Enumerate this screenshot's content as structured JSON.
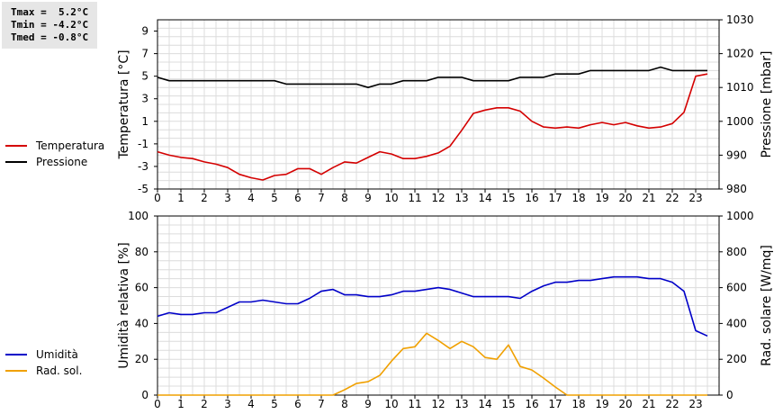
{
  "stats": {
    "tmax": "Tmax =  5.2°C",
    "tmin": "Tmin = -4.2°C",
    "tmed": "Tmed = -0.8°C"
  },
  "legend_top": [
    {
      "label": "Temperatura",
      "color": "#d40000"
    },
    {
      "label": "Pressione",
      "color": "#000000"
    }
  ],
  "legend_bottom": [
    {
      "label": "Umidità",
      "color": "#0000c8"
    },
    {
      "label": "Rad. sol.",
      "color": "#f0a000"
    }
  ],
  "chart_data": [
    {
      "type": "line",
      "ylabel": "Temperatura [°C]",
      "y2label": "Pressione [mbar]",
      "xlim": [
        0,
        24
      ],
      "ylim": [
        -5,
        10
      ],
      "y2lim": [
        980,
        1030
      ],
      "xticks": [
        "0",
        "1",
        "2",
        "3",
        "4",
        "5",
        "6",
        "7",
        "8",
        "9",
        "10",
        "11",
        "12",
        "13",
        "14",
        "15",
        "16",
        "17",
        "18",
        "19",
        "20",
        "21",
        "22",
        "23"
      ],
      "yticks": [
        "-5",
        "-3",
        "-1",
        "1",
        "3",
        "5",
        "7",
        "9"
      ],
      "y2ticks": [
        "980",
        "990",
        "1000",
        "1010",
        "1020",
        "1030"
      ],
      "grid": true,
      "series": [
        {
          "name": "Temperatura",
          "axis": "left",
          "color": "#d40000",
          "x": [
            0,
            0.5,
            1,
            1.5,
            2,
            2.5,
            3,
            3.5,
            4,
            4.5,
            5,
            5.5,
            6,
            6.5,
            7,
            7.5,
            8,
            8.5,
            9,
            9.5,
            10,
            10.5,
            11,
            11.5,
            12,
            12.5,
            13,
            13.5,
            14,
            14.5,
            15,
            15.5,
            16,
            16.5,
            17,
            17.5,
            18,
            18.5,
            19,
            19.5,
            20,
            20.5,
            21,
            21.5,
            22,
            22.5,
            23,
            23.5
          ],
          "y": [
            -1.7,
            -2.0,
            -2.2,
            -2.3,
            -2.6,
            -2.8,
            -3.1,
            -3.7,
            -4.0,
            -4.2,
            -3.8,
            -3.7,
            -3.2,
            -3.2,
            -3.7,
            -3.1,
            -2.6,
            -2.7,
            -2.2,
            -1.7,
            -1.9,
            -2.3,
            -2.3,
            -2.1,
            -1.8,
            -1.2,
            0.2,
            1.7,
            2.0,
            2.2,
            2.2,
            1.9,
            1.0,
            0.5,
            0.4,
            0.5,
            0.4,
            0.7,
            0.9,
            0.7,
            0.9,
            0.6,
            0.4,
            0.5,
            0.8,
            1.8,
            5.0,
            5.2
          ]
        },
        {
          "name": "Pressione",
          "axis": "right",
          "color": "#000000",
          "x": [
            0,
            0.5,
            1,
            1.5,
            2,
            2.5,
            3,
            3.5,
            4,
            4.5,
            5,
            5.5,
            6,
            6.5,
            7,
            7.5,
            8,
            8.5,
            9,
            9.5,
            10,
            10.5,
            11,
            11.5,
            12,
            12.5,
            13,
            13.5,
            14,
            14.5,
            15,
            15.5,
            16,
            16.5,
            17,
            17.5,
            18,
            18.5,
            19,
            19.5,
            20,
            20.5,
            21,
            21.5,
            22,
            22.5,
            23,
            23.5
          ],
          "y": [
            1013,
            1012,
            1012,
            1012,
            1012,
            1012,
            1012,
            1012,
            1012,
            1012,
            1012,
            1011,
            1011,
            1011,
            1011,
            1011,
            1011,
            1011,
            1010,
            1011,
            1011,
            1012,
            1012,
            1012,
            1013,
            1013,
            1013,
            1012,
            1012,
            1012,
            1012,
            1013,
            1013,
            1013,
            1014,
            1014,
            1014,
            1015,
            1015,
            1015,
            1015,
            1015,
            1015,
            1016,
            1015,
            1015,
            1015,
            1015
          ]
        }
      ]
    },
    {
      "type": "line",
      "ylabel": "Umidità relativa [%]",
      "y2label": "Rad. solare [W/mq]",
      "xlim": [
        0,
        24
      ],
      "ylim": [
        0,
        100
      ],
      "y2lim": [
        0,
        1000
      ],
      "xticks": [
        "0",
        "1",
        "2",
        "3",
        "4",
        "5",
        "6",
        "7",
        "8",
        "9",
        "10",
        "11",
        "12",
        "13",
        "14",
        "15",
        "16",
        "17",
        "18",
        "19",
        "20",
        "21",
        "22",
        "23"
      ],
      "yticks": [
        "0",
        "20",
        "40",
        "60",
        "80",
        "100"
      ],
      "y2ticks": [
        "0",
        "200",
        "400",
        "600",
        "800",
        "1000"
      ],
      "grid": true,
      "series": [
        {
          "name": "Umidità",
          "axis": "left",
          "color": "#0000c8",
          "x": [
            0,
            0.5,
            1,
            1.5,
            2,
            2.5,
            3,
            3.5,
            4,
            4.5,
            5,
            5.5,
            6,
            6.5,
            7,
            7.5,
            8,
            8.5,
            9,
            9.5,
            10,
            10.5,
            11,
            11.5,
            12,
            12.5,
            13,
            13.5,
            14,
            14.5,
            15,
            15.5,
            16,
            16.5,
            17,
            17.5,
            18,
            18.5,
            19,
            19.5,
            20,
            20.5,
            21,
            21.5,
            22,
            22.5,
            23,
            23.5
          ],
          "y": [
            44,
            46,
            45,
            45,
            46,
            46,
            49,
            52,
            52,
            53,
            52,
            51,
            51,
            54,
            58,
            59,
            56,
            56,
            55,
            55,
            56,
            58,
            58,
            59,
            60,
            59,
            57,
            55,
            55,
            55,
            55,
            54,
            58,
            61,
            63,
            63,
            64,
            64,
            65,
            66,
            66,
            66,
            65,
            65,
            63,
            58,
            36,
            33
          ]
        },
        {
          "name": "Rad. sol.",
          "axis": "right",
          "color": "#f0a000",
          "x": [
            0,
            0.5,
            1,
            1.5,
            2,
            2.5,
            3,
            3.5,
            4,
            4.5,
            5,
            5.5,
            6,
            6.5,
            7,
            7.5,
            8,
            8.5,
            9,
            9.5,
            10,
            10.5,
            11,
            11.5,
            12,
            12.5,
            13,
            13.5,
            14,
            14.5,
            15,
            15.5,
            16,
            16.5,
            17,
            17.5,
            18,
            18.5,
            19,
            19.5,
            20,
            20.5,
            21,
            21.5,
            22,
            22.5,
            23,
            23.5
          ],
          "y": [
            0,
            0,
            0,
            0,
            0,
            0,
            0,
            0,
            0,
            0,
            0,
            0,
            0,
            0,
            0,
            0,
            30,
            65,
            75,
            110,
            190,
            260,
            270,
            345,
            305,
            260,
            300,
            270,
            210,
            200,
            280,
            160,
            140,
            95,
            45,
            0,
            0,
            0,
            0,
            0,
            0,
            0,
            0,
            0,
            0,
            0,
            0,
            0
          ]
        }
      ]
    }
  ]
}
